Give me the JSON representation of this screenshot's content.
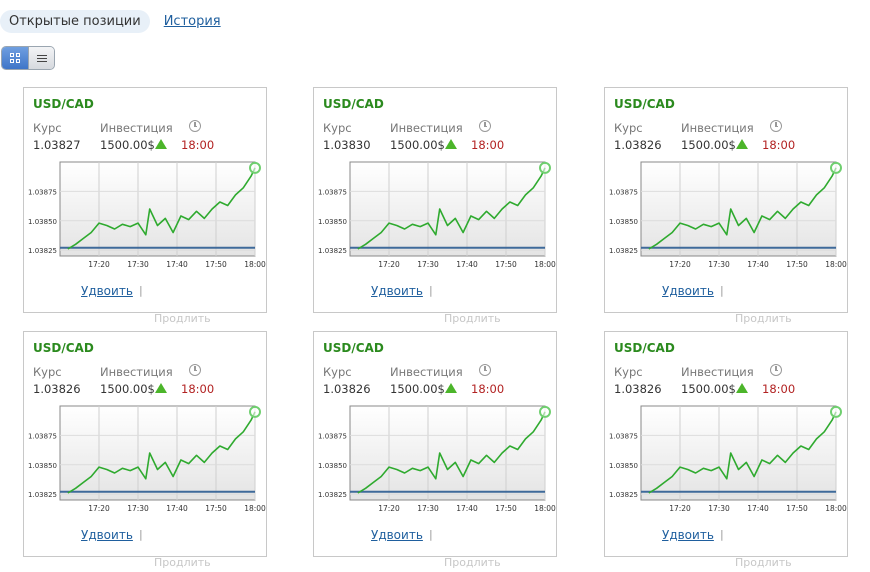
{
  "tabs": [
    {
      "label": "Открытые позиции",
      "active": true
    },
    {
      "label": "История",
      "active": false
    }
  ],
  "view_toggle": {
    "grid_icon": "grid-view-icon",
    "list_icon": "list-view-icon",
    "active": "grid"
  },
  "labels": {
    "rate": "Курс",
    "investment": "Инвестиция",
    "double": "Удвоить",
    "extend": "Продлить",
    "separator": "|"
  },
  "chart_axis": {
    "y_ticks": [
      "1.03875",
      "1.03850",
      "1.03825"
    ],
    "x_ticks": [
      "17:20",
      "17:30",
      "17:40",
      "17:50",
      "18:00"
    ]
  },
  "colors": {
    "pair": "#2b8a1e",
    "up": "#4cb52a",
    "time": "#b22222",
    "line": "#2faa2f",
    "baseline": "#3f6a9a",
    "link": "#1f5f9e"
  },
  "cards": [
    {
      "pair": "USD/CAD",
      "rate": "1.03827",
      "investment": "1500.00$",
      "time": "18:00",
      "direction_icon": "arrow-up-icon"
    },
    {
      "pair": "USD/CAD",
      "rate": "1.03830",
      "investment": "1500.00$",
      "time": "18:00",
      "direction_icon": "arrow-up-icon"
    },
    {
      "pair": "USD/CAD",
      "rate": "1.03826",
      "investment": "1500.00$",
      "time": "18:00",
      "direction_icon": "arrow-up-icon"
    },
    {
      "pair": "USD/CAD",
      "rate": "1.03826",
      "investment": "1500.00$",
      "time": "18:00",
      "direction_icon": "arrow-up-icon"
    },
    {
      "pair": "USD/CAD",
      "rate": "1.03826",
      "investment": "1500.00$",
      "time": "18:00",
      "direction_icon": "arrow-up-icon"
    },
    {
      "pair": "USD/CAD",
      "rate": "1.03826",
      "investment": "1500.00$",
      "time": "18:00",
      "direction_icon": "arrow-up-icon"
    }
  ],
  "chart_data": {
    "type": "line",
    "title": "",
    "xlabel": "",
    "ylabel": "",
    "x_ticks": [
      "17:20",
      "17:30",
      "17:40",
      "17:50",
      "18:00"
    ],
    "y_ticks": [
      1.03875,
      1.0385,
      1.03825
    ],
    "ylim": [
      1.0382,
      1.039
    ],
    "grid": true,
    "legend": "none",
    "series": [
      {
        "x": [
          "17:12",
          "17:14",
          "17:16",
          "17:18",
          "17:20",
          "17:22",
          "17:24",
          "17:26",
          "17:28",
          "17:30",
          "17:32",
          "17:33",
          "17:35",
          "17:37",
          "17:39",
          "17:41",
          "17:43",
          "17:45",
          "17:47",
          "17:49",
          "17:51",
          "17:53",
          "17:55",
          "17:57",
          "17:59",
          "18:00"
        ],
        "values": [
          1.03826,
          1.0383,
          1.03835,
          1.0384,
          1.03848,
          1.03846,
          1.03843,
          1.03847,
          1.03845,
          1.03848,
          1.03838,
          1.0386,
          1.03846,
          1.03852,
          1.0384,
          1.03854,
          1.03851,
          1.03858,
          1.03852,
          1.0386,
          1.03866,
          1.03863,
          1.03872,
          1.03878,
          1.03888,
          1.03895
        ]
      }
    ],
    "baseline": 1.03827
  }
}
